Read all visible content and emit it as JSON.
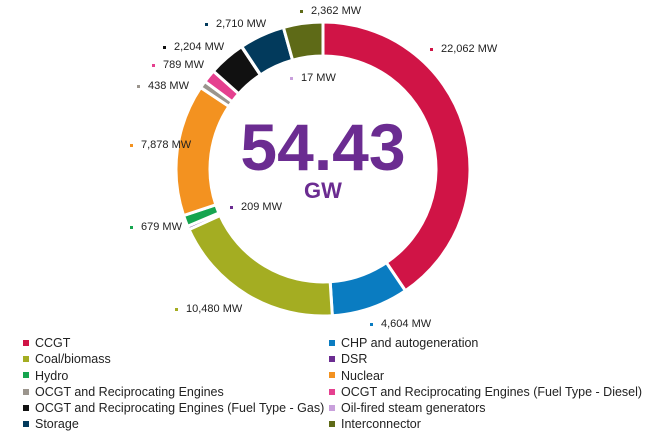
{
  "chart_data": {
    "type": "pie",
    "donut": true,
    "total_label": "54.43",
    "total_unit": "GW",
    "legend_position": "bottom",
    "series": [
      {
        "name": "CCGT",
        "value": 22062,
        "label": "22,062 MW",
        "color": "#d01446"
      },
      {
        "name": "CHP and autogeneration",
        "value": 4604,
        "label": "4,604 MW",
        "color": "#0a7cc1"
      },
      {
        "name": "Coal/biomass",
        "value": 10480,
        "label": "10,480 MW",
        "color": "#a4ad22"
      },
      {
        "name": "DSR",
        "value": 209,
        "label": "209 MW",
        "color": "#6b2c91"
      },
      {
        "name": "Hydro",
        "value": 679,
        "label": "679 MW",
        "color": "#16a54f"
      },
      {
        "name": "Nuclear",
        "value": 7878,
        "label": "7,878 MW",
        "color": "#f39220"
      },
      {
        "name": "OCGT and Reciprocating Engines",
        "value": 438,
        "label": "438 MW",
        "color": "#9b958d"
      },
      {
        "name": "OCGT and Reciprocating Engines (Fuel Type - Diesel)",
        "value": 789,
        "label": "789 MW",
        "color": "#e5408f"
      },
      {
        "name": "OCGT and Reciprocating Engines (Fuel Type - Gas)",
        "value": 2204,
        "label": "2,204 MW",
        "color": "#111111"
      },
      {
        "name": "Oil-fired steam generators",
        "value": 17,
        "label": "17 MW",
        "color": "#c9a0dc"
      },
      {
        "name": "Storage",
        "value": 2710,
        "label": "2,710 MW",
        "color": "#023a5c"
      },
      {
        "name": "Interconnector",
        "value": 2362,
        "label": "2,362 MW",
        "color": "#5e6a17"
      }
    ]
  }
}
